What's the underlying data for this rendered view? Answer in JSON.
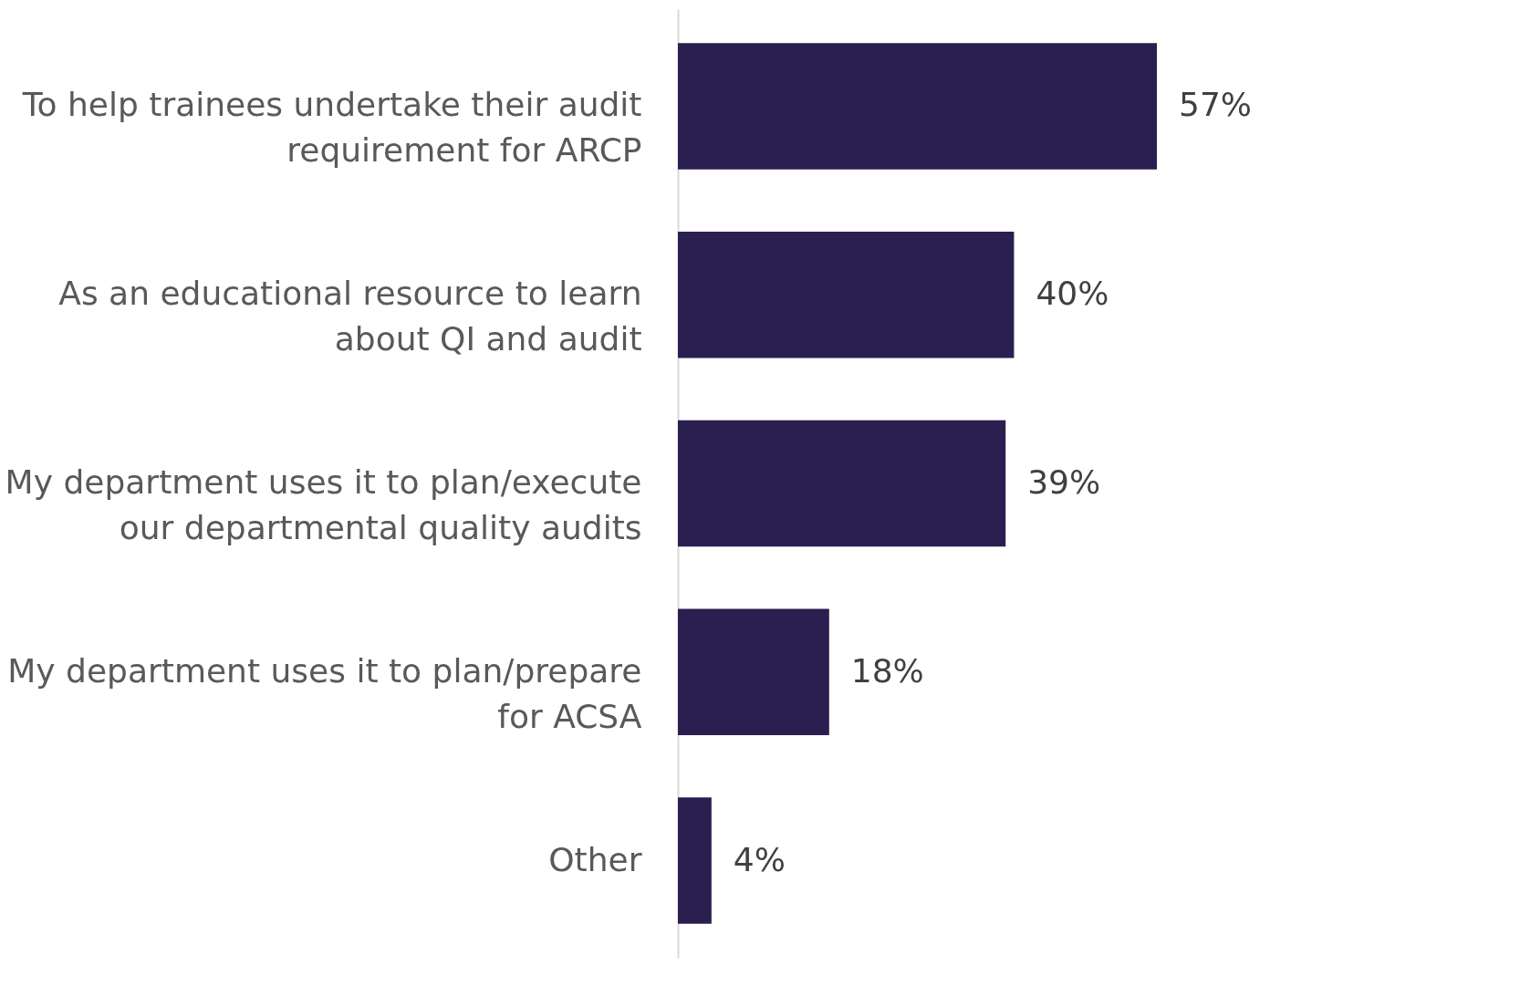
{
  "chart_data": {
    "type": "bar",
    "orientation": "horizontal",
    "categories": [
      "To help trainees undertake their audit requirement for ARCP",
      "As an educational resource to learn about QI and audit",
      "My department uses it to plan/execute our departmental quality audits",
      "My department uses it to plan/prepare for ACSA",
      "Other"
    ],
    "series": [
      {
        "color": "#2a1f4f",
        "values": [
          57,
          40,
          39,
          18,
          4
        ],
        "value_labels": [
          "57%",
          "40%",
          "39%",
          "18%",
          "4%"
        ]
      }
    ]
  }
}
